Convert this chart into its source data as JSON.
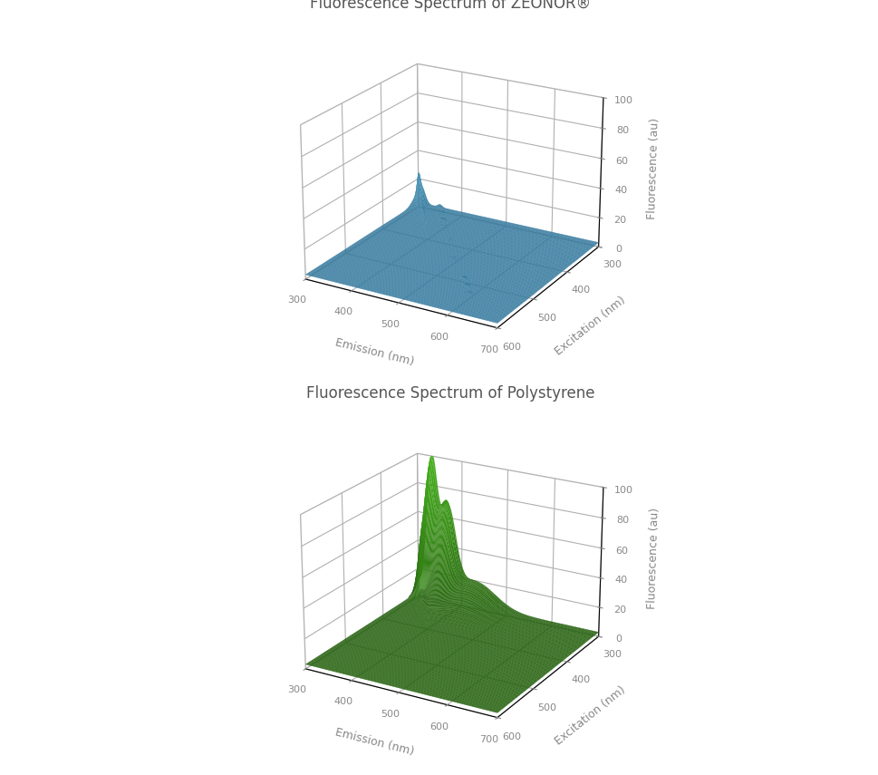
{
  "title1": "Fluorescence Spectrum of ZEONOR®",
  "title2": "Fluorescence Spectrum of Polystyrene",
  "emission_range": [
    300,
    700
  ],
  "excitation_range": [
    300,
    600
  ],
  "zlim": [
    0,
    100
  ],
  "xlabel": "Emission (nm)",
  "ylabel": "Excitation (nm)",
  "zlabel": "Fluorescence (au)",
  "xticks": [
    300,
    400,
    500,
    600,
    700
  ],
  "yticks": [
    300,
    400,
    500,
    600
  ],
  "zticks": [
    0,
    20,
    40,
    60,
    80,
    100
  ],
  "background_color": "#ffffff",
  "title_fontsize": 12,
  "label_fontsize": 9,
  "tick_fontsize": 8,
  "elev1": 22,
  "azim1": -60,
  "elev2": 22,
  "azim2": -60
}
